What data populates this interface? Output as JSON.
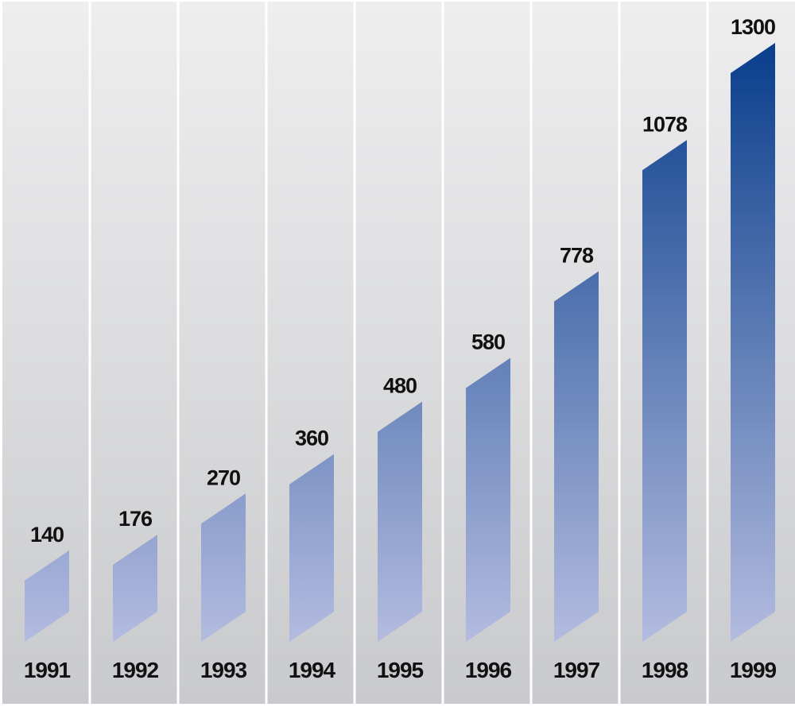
{
  "chart_data": {
    "type": "bar",
    "title": "",
    "xlabel": "",
    "ylabel": "",
    "categories": [
      "1991",
      "1992",
      "1993",
      "1994",
      "1995",
      "1996",
      "1997",
      "1998",
      "1999"
    ],
    "values": [
      140,
      176,
      270,
      360,
      480,
      580,
      778,
      1078,
      1300
    ],
    "value_labels": [
      "140",
      "176",
      "270",
      "360",
      "480",
      "580",
      "778",
      "1078",
      "1300"
    ],
    "ylim": [
      0,
      1300
    ],
    "grid": false,
    "legend": "none",
    "colors": {
      "bar_top": "#0a3f8c",
      "bar_bottom": "#b4bce0",
      "panel_light": "#eeeeef",
      "panel_dark": "#c9cacd",
      "divider": "#ffffff",
      "text": "#111111"
    }
  }
}
